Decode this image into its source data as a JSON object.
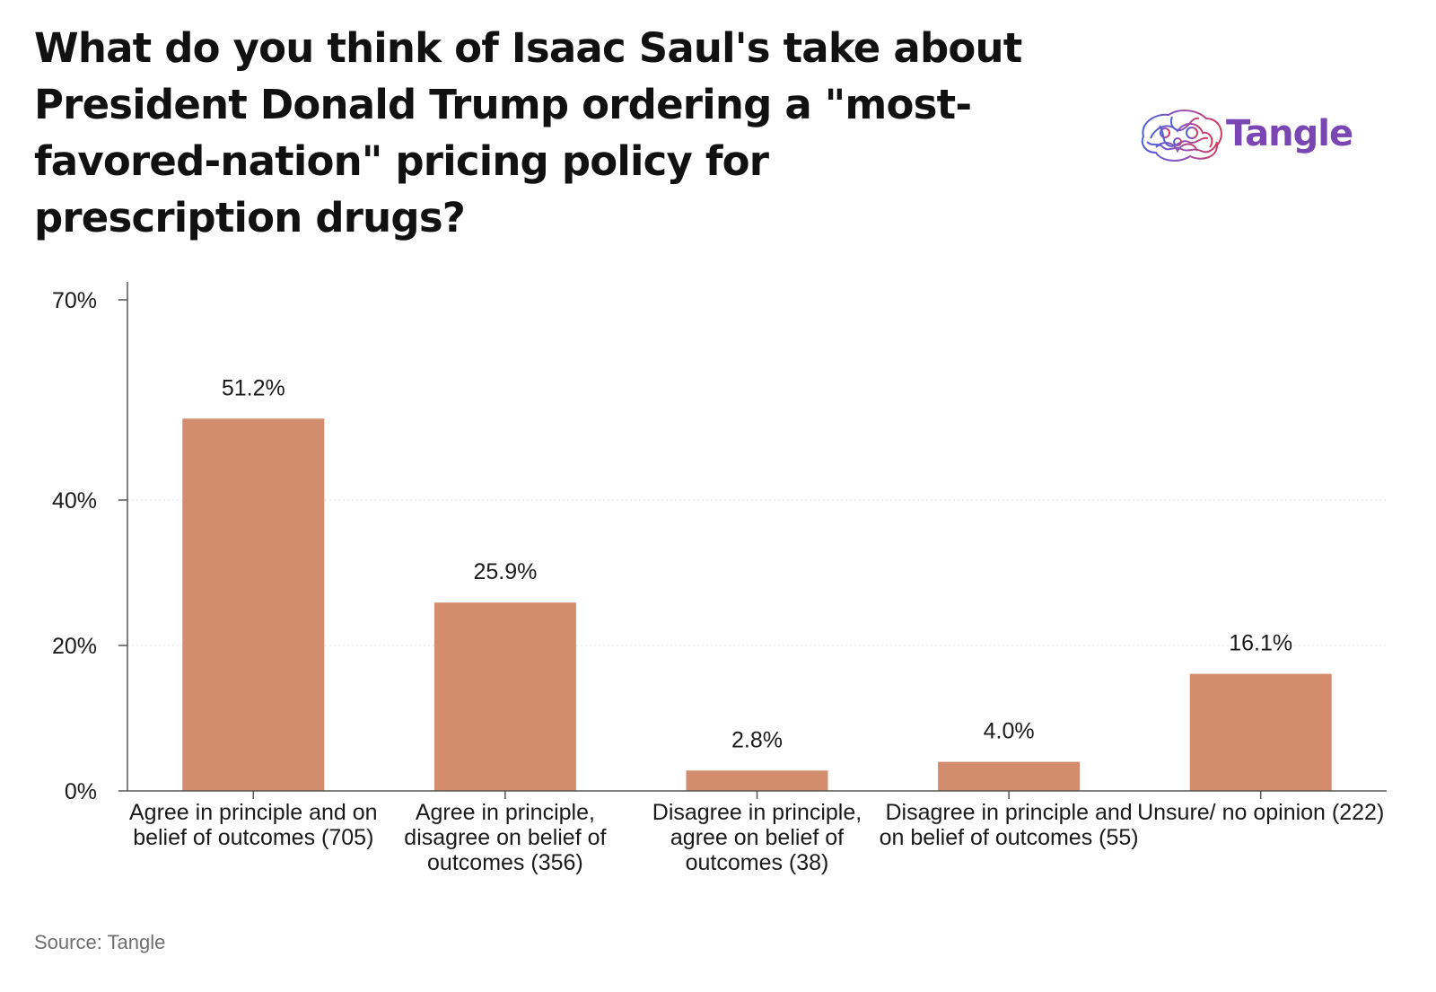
{
  "chart_data": {
    "type": "bar",
    "title": "What do you think of Isaac Saul's take about President Donald Trump ordering a \"most-favored-nation\" pricing policy for prescription drugs?",
    "categories": [
      "Agree in principle and on belief of outcomes (705)",
      "Agree in principle, disagree on belief of outcomes (356)",
      "Disagree in principle, agree on belief of outcomes (38)",
      "Disagree in principle and on belief of outcomes (55)",
      "Unsure/ no opinion (222)"
    ],
    "values": [
      51.2,
      25.9,
      2.8,
      4.0,
      16.1
    ],
    "data_labels": [
      "51.2%",
      "25.9%",
      "2.8%",
      "4.0%",
      "16.1%"
    ],
    "ylim": [
      0,
      70
    ],
    "yticks": [
      0,
      20,
      40,
      70
    ],
    "ytick_labels": [
      "0%",
      "20%",
      "40%",
      "70%"
    ],
    "xlabel": "",
    "ylabel": "",
    "bar_color": "#d48c6e",
    "grid": "horizontal dotted at 20% and 40%",
    "legend": "none"
  },
  "source": "Source: Tangle",
  "logo": {
    "text": "Tangle",
    "icon": "brain-scribble-icon"
  }
}
